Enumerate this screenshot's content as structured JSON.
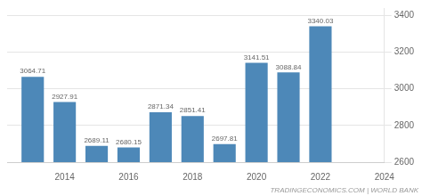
{
  "chart_data": {
    "type": "bar",
    "x": [
      2013,
      2014,
      2015,
      2016,
      2017,
      2018,
      2019,
      2020,
      2021,
      2022
    ],
    "values": [
      3064.71,
      2927.91,
      2689.11,
      2680.15,
      2871.34,
      2851.41,
      2697.81,
      3141.51,
      3088.84,
      3340.03
    ],
    "color": "#4d88b8",
    "xlim": [
      2012.2,
      2024
    ],
    "xticks": [
      2014,
      2016,
      2018,
      2020,
      2022,
      2024
    ],
    "ylim": [
      2600,
      3440
    ],
    "yticks": [
      2600,
      2800,
      3000,
      3200,
      3400
    ],
    "grid": true,
    "data_labels": true,
    "annotations": [
      "TRADINGECONOMICS.COM | WORLD BANK"
    ]
  }
}
